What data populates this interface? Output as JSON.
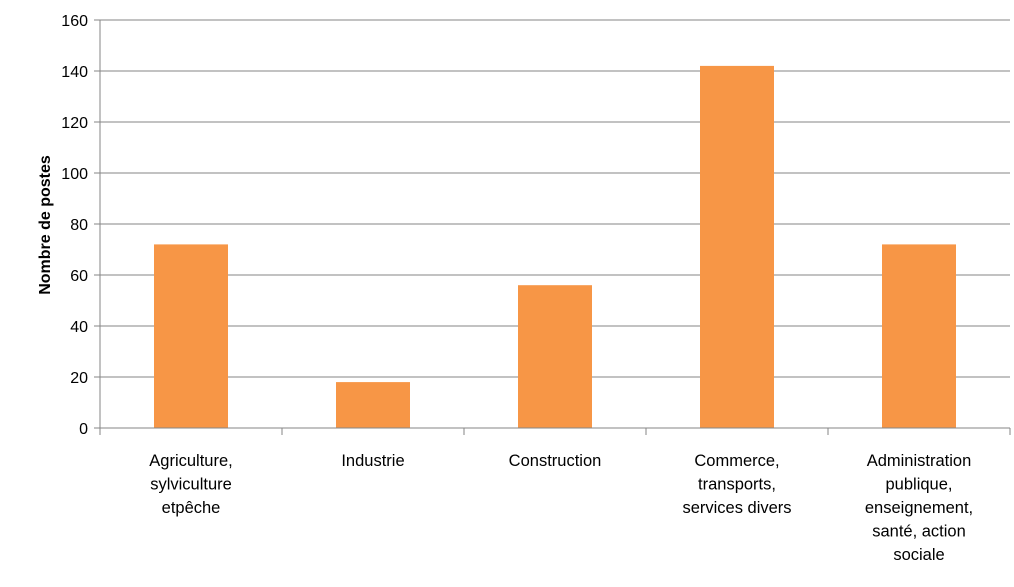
{
  "chart_data": {
    "type": "bar",
    "title": "",
    "xlabel": "",
    "ylabel": "Nombre de postes",
    "ylim": [
      0,
      160
    ],
    "yticks": [
      0,
      20,
      40,
      60,
      80,
      100,
      120,
      140,
      160
    ],
    "grid": true,
    "legend": "none",
    "bar_color": "#F79646",
    "categories": [
      [
        "Agriculture,",
        "sylviculture",
        "etpêche"
      ],
      [
        "Industrie"
      ],
      [
        "Construction"
      ],
      [
        "Commerce,",
        "transports,",
        "services divers"
      ],
      [
        "Administration",
        "publique,",
        "enseignement,",
        "santé, action",
        "sociale"
      ]
    ],
    "values": [
      72,
      18,
      56,
      142,
      72
    ]
  }
}
